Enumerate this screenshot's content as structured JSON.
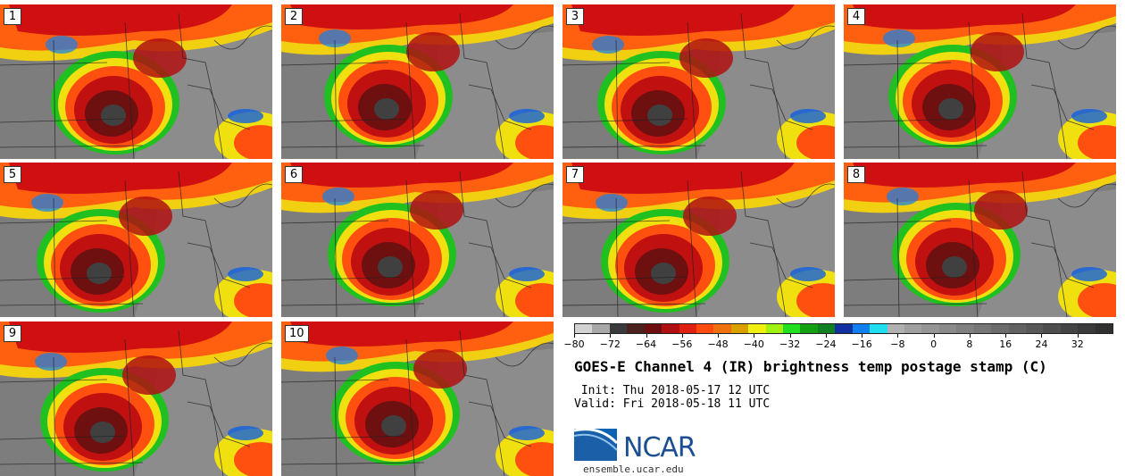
{
  "stamps": [
    {
      "label": "1"
    },
    {
      "label": "2"
    },
    {
      "label": "3"
    },
    {
      "label": "4"
    },
    {
      "label": "5"
    },
    {
      "label": "6"
    },
    {
      "label": "7"
    },
    {
      "label": "8"
    },
    {
      "label": "9"
    },
    {
      "label": "10"
    }
  ],
  "colorbar": {
    "colors": [
      "#d3d3d3",
      "#a9a9a9",
      "#3a3a3a",
      "#4d2020",
      "#6e0f0f",
      "#b01010",
      "#e02010",
      "#ff4a10",
      "#f07010",
      "#d9a000",
      "#f0f010",
      "#a0f010",
      "#20e020",
      "#10a010",
      "#108020",
      "#1030a0",
      "#1080f0",
      "#20e0f0",
      "#b0b0b0",
      "#a0a0a0",
      "#959595",
      "#8a8a8a",
      "#808080",
      "#767676",
      "#6c6c6c",
      "#626262",
      "#585858",
      "#4e4e4e",
      "#444444",
      "#3a3a3a",
      "#303030"
    ],
    "min": -80,
    "max": 40,
    "ticks": [
      "−80",
      "−72",
      "−64",
      "−56",
      "−48",
      "−40",
      "−32",
      "−24",
      "−16",
      "−8",
      "0",
      "8",
      "16",
      "24",
      "32"
    ],
    "tick_values": [
      -80,
      -72,
      -64,
      -56,
      -48,
      -40,
      -32,
      -24,
      -16,
      -8,
      0,
      8,
      16,
      24,
      32
    ]
  },
  "title": "GOES-E Channel 4 (IR) brightness temp postage stamp (C)",
  "init": " Init: Thu 2018-05-17 12 UTC",
  "valid": "Valid: Fri 2018-05-18 11 UTC",
  "logo": {
    "name": "NCAR",
    "url": "ensemble.ucar.edu"
  }
}
